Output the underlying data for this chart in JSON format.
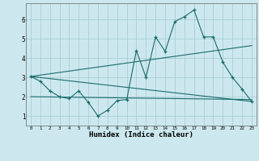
{
  "xlabel": "Humidex (Indice chaleur)",
  "background_color": "#cce8ee",
  "grid_color": "#aacdd5",
  "line_color": "#1a6b6b",
  "xlim": [
    -0.5,
    23.5
  ],
  "ylim": [
    0.5,
    6.85
  ],
  "yticks": [
    1,
    2,
    3,
    4,
    5,
    6
  ],
  "xticks": [
    0,
    1,
    2,
    3,
    4,
    5,
    6,
    7,
    8,
    9,
    10,
    11,
    12,
    13,
    14,
    15,
    16,
    17,
    18,
    19,
    20,
    21,
    22,
    23
  ],
  "line1_x": [
    0,
    1,
    2,
    3,
    4,
    5,
    6,
    7,
    8,
    9,
    10,
    11,
    12,
    13,
    14,
    15,
    16,
    17,
    18,
    19,
    20,
    21,
    22,
    23
  ],
  "line1_y": [
    3.05,
    2.8,
    2.3,
    2.0,
    1.9,
    2.3,
    1.7,
    1.0,
    1.3,
    1.8,
    1.85,
    4.4,
    3.0,
    5.1,
    4.35,
    5.9,
    6.15,
    6.5,
    5.1,
    5.1,
    3.8,
    3.0,
    2.4,
    1.75
  ],
  "line2_x": [
    0,
    23
  ],
  "line2_y": [
    3.05,
    1.75
  ],
  "line3_x": [
    0,
    23
  ],
  "line3_y": [
    3.05,
    4.65
  ],
  "line4_x": [
    0,
    23
  ],
  "line4_y": [
    2.0,
    1.85
  ]
}
